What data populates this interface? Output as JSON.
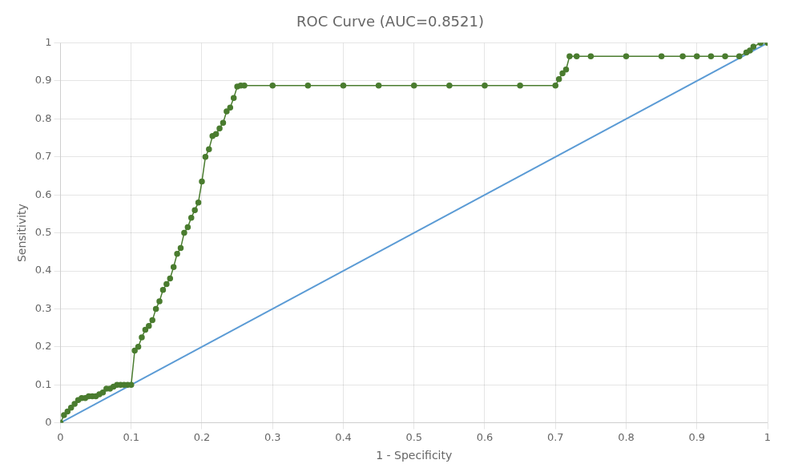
{
  "chart_data": {
    "type": "line",
    "title": "ROC Curve (AUC=0.8521)",
    "xlabel": "1 - Specificity",
    "ylabel": "Sensitivity",
    "xlim": [
      0,
      1
    ],
    "ylim": [
      0,
      1
    ],
    "xticks": [
      0,
      0.1,
      0.2,
      0.3,
      0.4,
      0.5,
      0.6,
      0.7,
      0.8,
      0.9,
      1
    ],
    "yticks": [
      0,
      0.1,
      0.2,
      0.3,
      0.4,
      0.5,
      0.6,
      0.7,
      0.8,
      0.9,
      1
    ],
    "grid": true,
    "series": [
      {
        "color": "#5b9bd5",
        "marker": "none",
        "line_style": "solid",
        "x": [
          0,
          1
        ],
        "values": [
          0,
          1
        ]
      },
      {
        "color": "#4a7c2f",
        "marker": "o",
        "line_style": "solid",
        "x": [
          0.0,
          0.005,
          0.01,
          0.015,
          0.02,
          0.025,
          0.03,
          0.035,
          0.04,
          0.045,
          0.05,
          0.055,
          0.06,
          0.065,
          0.07,
          0.075,
          0.08,
          0.085,
          0.09,
          0.095,
          0.1,
          0.105,
          0.11,
          0.115,
          0.12,
          0.125,
          0.13,
          0.135,
          0.14,
          0.145,
          0.15,
          0.155,
          0.16,
          0.165,
          0.17,
          0.175,
          0.18,
          0.185,
          0.19,
          0.195,
          0.2,
          0.205,
          0.21,
          0.215,
          0.22,
          0.225,
          0.23,
          0.235,
          0.24,
          0.245,
          0.25,
          0.255,
          0.26,
          0.3,
          0.35,
          0.4,
          0.45,
          0.5,
          0.55,
          0.6,
          0.65,
          0.7,
          0.705,
          0.71,
          0.715,
          0.72,
          0.73,
          0.75,
          0.8,
          0.85,
          0.88,
          0.9,
          0.92,
          0.94,
          0.96,
          0.97,
          0.975,
          0.98,
          0.99,
          1.0
        ],
        "values": [
          0.0,
          0.02,
          0.03,
          0.04,
          0.05,
          0.06,
          0.065,
          0.065,
          0.07,
          0.07,
          0.07,
          0.075,
          0.08,
          0.09,
          0.09,
          0.095,
          0.1,
          0.1,
          0.1,
          0.1,
          0.1,
          0.19,
          0.2,
          0.225,
          0.245,
          0.255,
          0.27,
          0.3,
          0.32,
          0.35,
          0.365,
          0.38,
          0.41,
          0.445,
          0.46,
          0.5,
          0.515,
          0.54,
          0.56,
          0.58,
          0.635,
          0.7,
          0.72,
          0.755,
          0.76,
          0.775,
          0.79,
          0.82,
          0.83,
          0.855,
          0.885,
          0.888,
          0.888,
          0.888,
          0.888,
          0.888,
          0.888,
          0.888,
          0.888,
          0.888,
          0.888,
          0.888,
          0.905,
          0.92,
          0.93,
          0.965,
          0.965,
          0.965,
          0.965,
          0.965,
          0.965,
          0.965,
          0.965,
          0.965,
          0.965,
          0.975,
          0.98,
          0.99,
          1.0,
          1.0
        ]
      }
    ]
  }
}
